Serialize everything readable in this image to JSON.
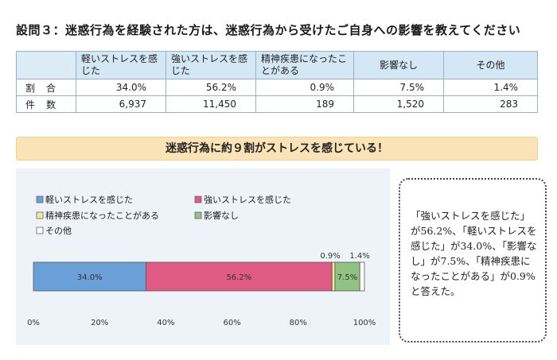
{
  "title": "設問３：迷惑行為を経験された方は、迷惑行為から受けたご自身への影響を教えてください",
  "table": {
    "headers": [
      "軽いストレスを感じた",
      "強いストレスを感じた",
      "精神疾患になったことがある",
      "影響なし",
      "その他"
    ],
    "rows": [
      {
        "label": "割合",
        "values": [
          "34.0%",
          "56.2%",
          "0.9%",
          "7.5%",
          "1.4%"
        ]
      },
      {
        "label": "件数",
        "values": [
          "6,937",
          "11,450",
          "189",
          "1,520",
          "283"
        ]
      }
    ]
  },
  "banner": "迷惑行為に約９割がストレスを感じている！",
  "note": "「強いストレスを感じた」が56.2%、「軽いストレスを感じた」が34.0%、「影響なし」が7.5%、「精神疾患になったことがある」が0.9%と答えた。",
  "chart_data": {
    "type": "bar",
    "orientation": "horizontal",
    "stacked": true,
    "series": [
      {
        "name": "軽いストレスを感じた",
        "value": 34.0,
        "label": "34.0%",
        "color": "#6b9fd8"
      },
      {
        "name": "強いストレスを感じた",
        "value": 56.2,
        "label": "56.2%",
        "color": "#e05a86"
      },
      {
        "name": "精神疾患になったことがある",
        "value": 0.9,
        "label": "0.9%",
        "color": "#f3e99a"
      },
      {
        "name": "影響なし",
        "value": 7.5,
        "label": "7.5%",
        "color": "#8fc283"
      },
      {
        "name": "その他",
        "value": 1.4,
        "label": "1.4%",
        "color": "#ffffff"
      }
    ],
    "xlim": [
      0,
      100
    ],
    "xticks": [
      "0%",
      "20%",
      "40%",
      "60%",
      "80%",
      "100%"
    ],
    "tick_values": [
      0,
      20,
      40,
      60,
      80,
      100
    ],
    "grid": false,
    "legend": "top"
  }
}
